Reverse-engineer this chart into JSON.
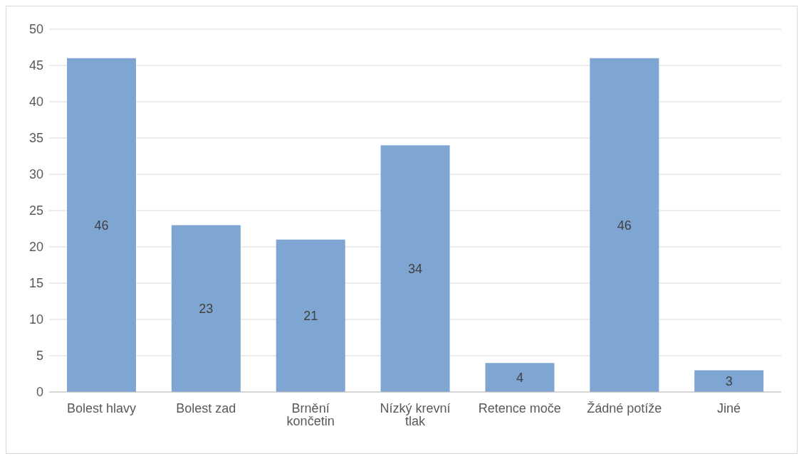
{
  "chart_data": {
    "type": "bar",
    "categories": [
      "Bolest hlavy",
      "Bolest zad",
      "Brnění končetin",
      "Nízký krevní tlak",
      "Retence moče",
      "Žádné potíže",
      "Jiné"
    ],
    "values": [
      46,
      23,
      21,
      34,
      4,
      46,
      3
    ],
    "color": "#7fa6d2",
    "ylim": [
      0,
      50
    ],
    "yticks": [
      0,
      5,
      10,
      15,
      20,
      25,
      30,
      35,
      40,
      45,
      50
    ],
    "grid": "y",
    "data_labels": true
  }
}
